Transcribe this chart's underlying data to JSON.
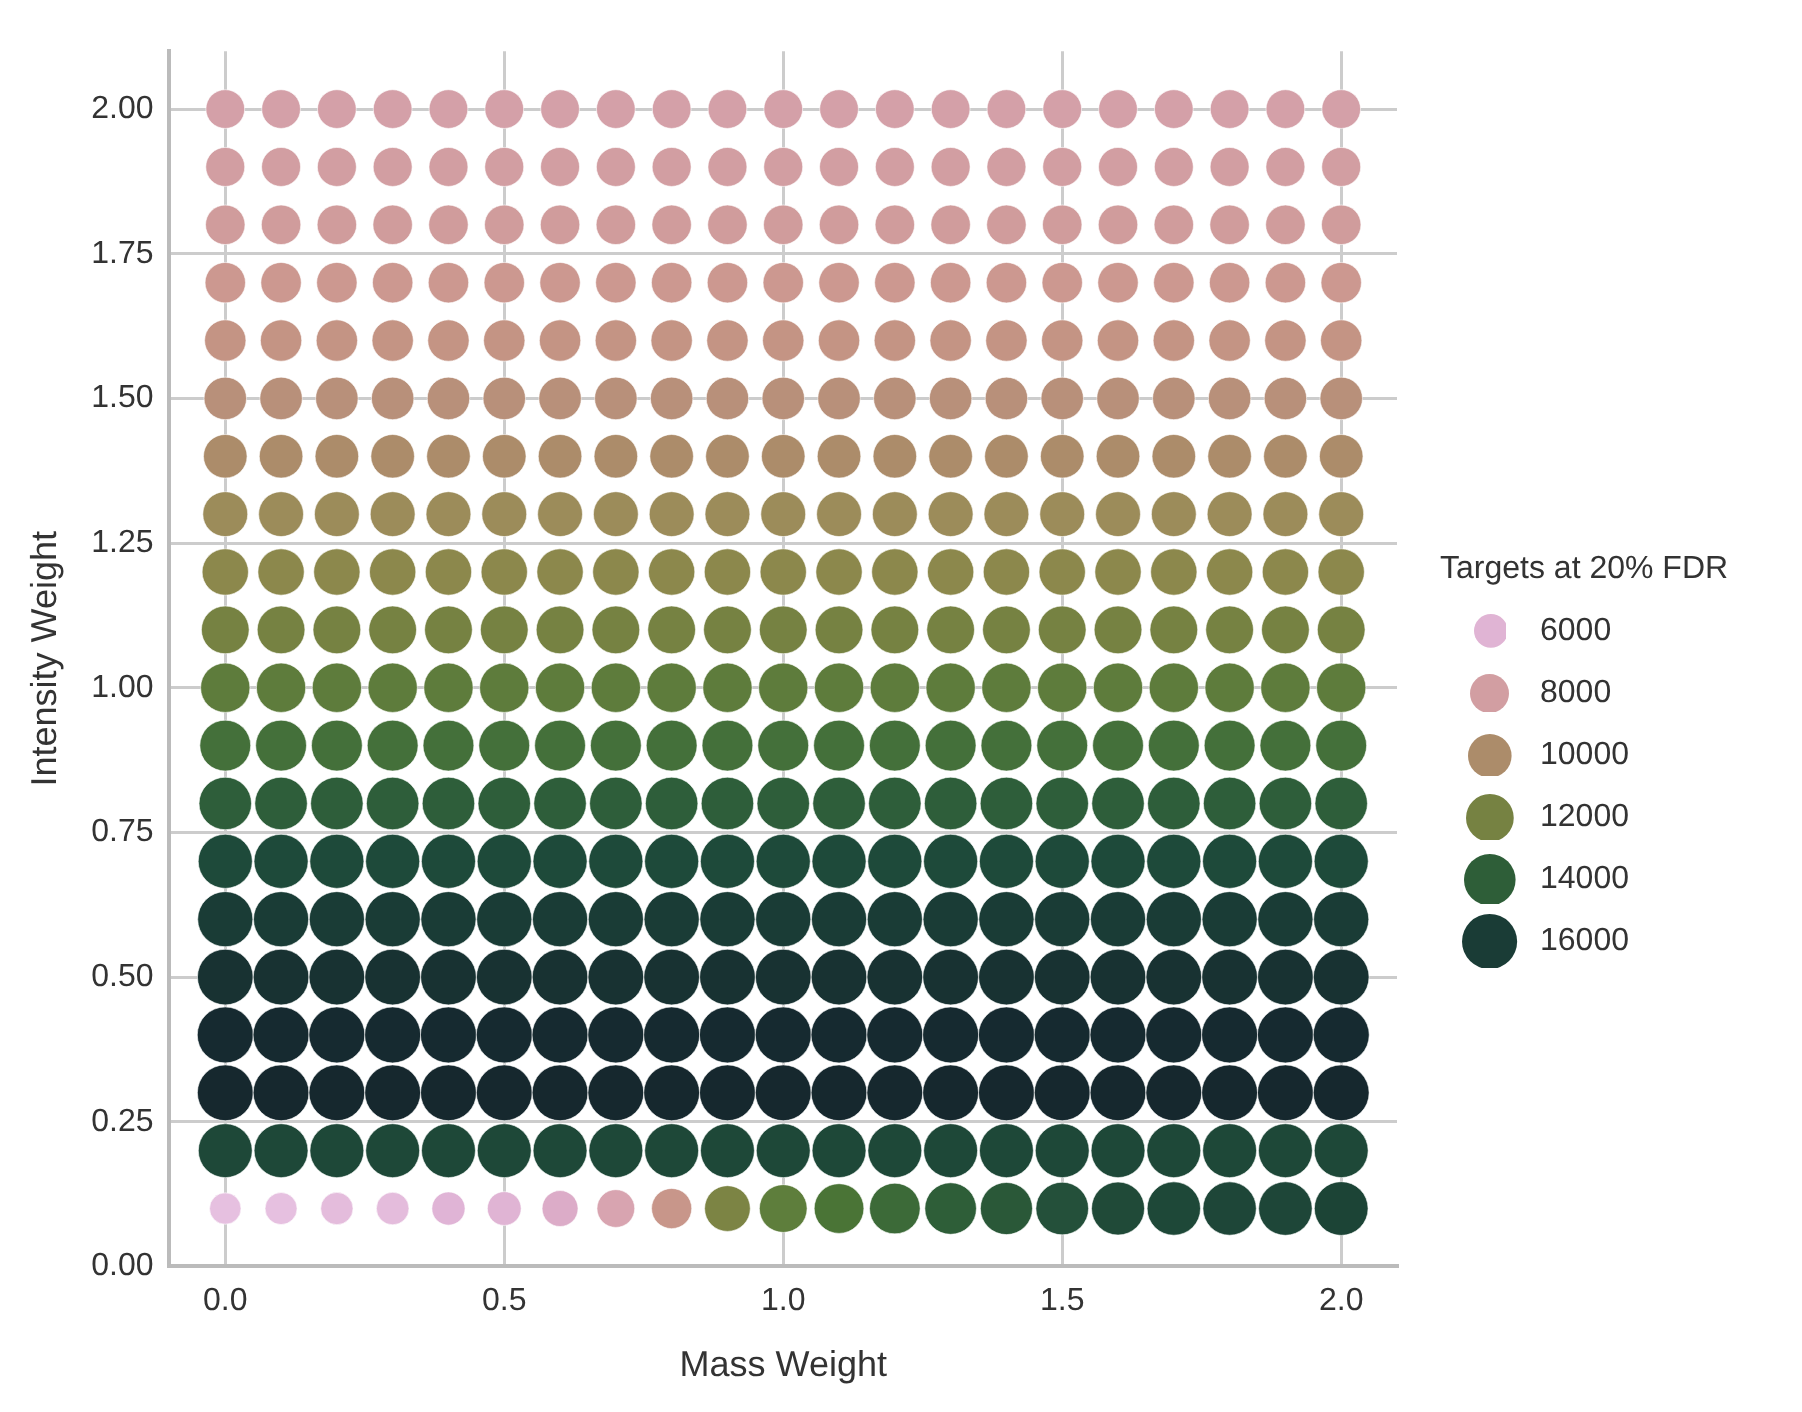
{
  "chart_data": {
    "type": "bubble",
    "xlabel": "Mass Weight",
    "ylabel": "Intensity Weight",
    "legend_title": "Targets at 20% FDR",
    "grid": true,
    "x": [
      0,
      0.1,
      0.2,
      0.3,
      0.4,
      0.5,
      0.6,
      0.7,
      0.8,
      0.9,
      1.0,
      1.1,
      1.2,
      1.3,
      1.4,
      1.5,
      1.6,
      1.7,
      1.8,
      1.9,
      2.0
    ],
    "xlim": [
      -0.1,
      2.1
    ],
    "xticks": [
      {
        "value": 0,
        "label": "0.0"
      },
      0.5,
      {
        "value": 1,
        "label": "1.0"
      },
      1.5,
      {
        "value": 2,
        "label": "2.0"
      }
    ],
    "ylim": [
      0,
      2.1
    ],
    "yticks": [
      {
        "value": 0,
        "label": "0.00"
      },
      0.25,
      {
        "value": 0.5,
        "label": "0.50"
      },
      0.75,
      {
        "value": 1,
        "label": "1.00"
      },
      1.25,
      {
        "value": 1.5,
        "label": "1.50"
      },
      1.75,
      {
        "value": 2,
        "label": "2.00"
      }
    ],
    "size_legend": [
      6000,
      8000,
      10000,
      12000,
      14000,
      16000
    ],
    "series": [
      {
        "color": "#d4a0a8",
        "values": [
          2,
          2,
          2,
          2,
          2,
          2,
          2,
          2,
          2,
          2,
          2,
          2,
          2,
          2,
          2,
          2,
          2,
          2,
          2,
          2,
          2
        ],
        "sizes": [
          7900,
          7900,
          7900,
          7900,
          7900,
          7900,
          7900,
          7900,
          7900,
          7900,
          7900,
          7900,
          7900,
          7900,
          7900,
          7900,
          7900,
          7900,
          7900,
          7900,
          7900
        ]
      },
      {
        "color": "#d29ea2",
        "values": [
          1.9,
          1.9,
          1.9,
          1.9,
          1.9,
          1.9,
          1.9,
          1.9,
          1.9,
          1.9,
          1.9,
          1.9,
          1.9,
          1.9,
          1.9,
          1.9,
          1.9,
          1.9,
          1.9,
          1.9,
          1.9
        ],
        "sizes": [
          8000,
          8000,
          8000,
          8000,
          8000,
          8000,
          8000,
          8000,
          8000,
          8000,
          8000,
          8000,
          8000,
          8000,
          8000,
          8000,
          8000,
          8000,
          8000,
          8000,
          8000
        ]
      },
      {
        "color": "#d09c9c",
        "values": [
          1.8,
          1.8,
          1.8,
          1.8,
          1.8,
          1.8,
          1.8,
          1.8,
          1.8,
          1.8,
          1.8,
          1.8,
          1.8,
          1.8,
          1.8,
          1.8,
          1.8,
          1.8,
          1.8,
          1.8,
          1.8
        ],
        "sizes": [
          8200,
          8200,
          8200,
          8200,
          8200,
          8200,
          8200,
          8200,
          8200,
          8200,
          8200,
          8200,
          8200,
          8200,
          8200,
          8200,
          8200,
          8200,
          8200,
          8200,
          8200
        ]
      },
      {
        "color": "#cc9890",
        "values": [
          1.7,
          1.7,
          1.7,
          1.7,
          1.7,
          1.7,
          1.7,
          1.7,
          1.7,
          1.7,
          1.7,
          1.7,
          1.7,
          1.7,
          1.7,
          1.7,
          1.7,
          1.7,
          1.7,
          1.7,
          1.7
        ],
        "sizes": [
          8600,
          8600,
          8600,
          8600,
          8600,
          8600,
          8600,
          8600,
          8600,
          8600,
          8600,
          8600,
          8600,
          8600,
          8600,
          8600,
          8600,
          8600,
          8600,
          8600,
          8600
        ]
      },
      {
        "color": "#c49484",
        "values": [
          1.6,
          1.6,
          1.6,
          1.6,
          1.6,
          1.6,
          1.6,
          1.6,
          1.6,
          1.6,
          1.6,
          1.6,
          1.6,
          1.6,
          1.6,
          1.6,
          1.6,
          1.6,
          1.6,
          1.6,
          1.6
        ],
        "sizes": [
          9000,
          9000,
          9000,
          9000,
          9000,
          9000,
          9000,
          9000,
          9000,
          9000,
          9000,
          9000,
          9000,
          9000,
          9000,
          9000,
          9000,
          9000,
          9000,
          9000,
          9000
        ]
      },
      {
        "color": "#b8907a",
        "values": [
          1.5,
          1.5,
          1.5,
          1.5,
          1.5,
          1.5,
          1.5,
          1.5,
          1.5,
          1.5,
          1.5,
          1.5,
          1.5,
          1.5,
          1.5,
          1.5,
          1.5,
          1.5,
          1.5,
          1.5,
          1.5
        ],
        "sizes": [
          9500,
          9500,
          9500,
          9500,
          9500,
          9500,
          9500,
          9500,
          9500,
          9500,
          9500,
          9500,
          9500,
          9500,
          9500,
          9500,
          9500,
          9500,
          9500,
          9500,
          9500
        ]
      },
      {
        "color": "#ac8c6a",
        "values": [
          1.4,
          1.4,
          1.4,
          1.4,
          1.4,
          1.4,
          1.4,
          1.4,
          1.4,
          1.4,
          1.4,
          1.4,
          1.4,
          1.4,
          1.4,
          1.4,
          1.4,
          1.4,
          1.4,
          1.4,
          1.4
        ],
        "sizes": [
          10000,
          10000,
          10000,
          10000,
          10000,
          10000,
          10000,
          10000,
          10000,
          10000,
          10000,
          10000,
          10000,
          10000,
          10000,
          10000,
          10000,
          10000,
          10000,
          10000,
          10000
        ]
      },
      {
        "color": "#9c8c5a",
        "values": [
          1.3,
          1.3,
          1.3,
          1.3,
          1.3,
          1.3,
          1.3,
          1.3,
          1.3,
          1.3,
          1.3,
          1.3,
          1.3,
          1.3,
          1.3,
          1.3,
          1.3,
          1.3,
          1.3,
          1.3,
          1.3
        ],
        "sizes": [
          10600,
          10600,
          10600,
          10600,
          10600,
          10600,
          10600,
          10600,
          10600,
          10600,
          10600,
          10600,
          10600,
          10600,
          10600,
          10600,
          10600,
          10600,
          10600,
          10600,
          10600
        ]
      },
      {
        "color": "#8c884c",
        "values": [
          1.2,
          1.2,
          1.2,
          1.2,
          1.2,
          1.2,
          1.2,
          1.2,
          1.2,
          1.2,
          1.2,
          1.2,
          1.2,
          1.2,
          1.2,
          1.2,
          1.2,
          1.2,
          1.2,
          1.2,
          1.2
        ],
        "sizes": [
          11300,
          11300,
          11300,
          11300,
          11300,
          11300,
          11300,
          11300,
          11300,
          11300,
          11300,
          11300,
          11300,
          11300,
          11300,
          11300,
          11300,
          11300,
          11300,
          11300,
          11300
        ]
      },
      {
        "color": "#768242",
        "values": [
          1.1,
          1.1,
          1.1,
          1.1,
          1.1,
          1.1,
          1.1,
          1.1,
          1.1,
          1.1,
          1.1,
          1.1,
          1.1,
          1.1,
          1.1,
          1.1,
          1.1,
          1.1,
          1.1,
          1.1,
          1.1
        ],
        "sizes": [
          12000,
          12000,
          12000,
          12000,
          12000,
          12000,
          12000,
          12000,
          12000,
          12000,
          12000,
          12000,
          12000,
          12000,
          12000,
          12000,
          12000,
          12000,
          12000,
          12000,
          12000
        ]
      },
      {
        "color": "#5e7c3c",
        "values": [
          1,
          1,
          1,
          1,
          1,
          1,
          1,
          1,
          1,
          1,
          1,
          1,
          1,
          1,
          1,
          1,
          1,
          1,
          1,
          1,
          1
        ],
        "sizes": [
          12800,
          12800,
          12800,
          12800,
          12800,
          12800,
          12800,
          12800,
          12800,
          12800,
          12800,
          12800,
          12800,
          12800,
          12800,
          12800,
          12800,
          12800,
          12800,
          12800,
          12800
        ]
      },
      {
        "color": "#44703a",
        "values": [
          0.9,
          0.9,
          0.9,
          0.9,
          0.9,
          0.9,
          0.9,
          0.9,
          0.9,
          0.9,
          0.9,
          0.9,
          0.9,
          0.9,
          0.9,
          0.9,
          0.9,
          0.9,
          0.9,
          0.9,
          0.9
        ],
        "sizes": [
          13600,
          13600,
          13600,
          13600,
          13600,
          13600,
          13600,
          13600,
          13600,
          13600,
          13600,
          13600,
          13600,
          13600,
          13600,
          13600,
          13600,
          13600,
          13600,
          13600,
          13600
        ]
      },
      {
        "color": "#2e5e3a",
        "values": [
          0.8,
          0.8,
          0.8,
          0.8,
          0.8,
          0.8,
          0.8,
          0.8,
          0.8,
          0.8,
          0.8,
          0.8,
          0.8,
          0.8,
          0.8,
          0.8,
          0.8,
          0.8,
          0.8,
          0.8,
          0.8
        ],
        "sizes": [
          14500,
          14500,
          14500,
          14500,
          14500,
          14500,
          14500,
          14500,
          14500,
          14500,
          14500,
          14500,
          14500,
          14500,
          14500,
          14500,
          14500,
          14500,
          14500,
          14500,
          14500
        ]
      },
      {
        "color": "#1e4a3a",
        "values": [
          0.7,
          0.7,
          0.7,
          0.7,
          0.7,
          0.7,
          0.7,
          0.7,
          0.7,
          0.7,
          0.7,
          0.7,
          0.7,
          0.7,
          0.7,
          0.7,
          0.7,
          0.7,
          0.7,
          0.7,
          0.7
        ],
        "sizes": [
          15400,
          15400,
          15400,
          15400,
          15400,
          15400,
          15400,
          15400,
          15400,
          15400,
          15400,
          15400,
          15400,
          15400,
          15400,
          15400,
          15400,
          15400,
          15400,
          15400,
          15400
        ]
      },
      {
        "color": "#1a3c36",
        "values": [
          0.6,
          0.6,
          0.6,
          0.6,
          0.6,
          0.6,
          0.6,
          0.6,
          0.6,
          0.6,
          0.6,
          0.6,
          0.6,
          0.6,
          0.6,
          0.6,
          0.6,
          0.6,
          0.6,
          0.6,
          0.6
        ],
        "sizes": [
          16000,
          16000,
          16000,
          16000,
          16000,
          16000,
          16000,
          16000,
          16000,
          16000,
          16000,
          16000,
          16000,
          16000,
          16000,
          16000,
          16000,
          16000,
          16000,
          16000,
          16000
        ]
      },
      {
        "color": "#183232",
        "values": [
          0.5,
          0.5,
          0.5,
          0.5,
          0.5,
          0.5,
          0.5,
          0.5,
          0.5,
          0.5,
          0.5,
          0.5,
          0.5,
          0.5,
          0.5,
          0.5,
          0.5,
          0.5,
          0.5,
          0.5,
          0.5
        ],
        "sizes": [
          16300,
          16300,
          16300,
          16300,
          16300,
          16300,
          16300,
          16300,
          16300,
          16300,
          16300,
          16300,
          16300,
          16300,
          16300,
          16300,
          16300,
          16300,
          16300,
          16300,
          16300
        ]
      },
      {
        "color": "#162a30",
        "values": [
          0.4,
          0.4,
          0.4,
          0.4,
          0.4,
          0.4,
          0.4,
          0.4,
          0.4,
          0.4,
          0.4,
          0.4,
          0.4,
          0.4,
          0.4,
          0.4,
          0.4,
          0.4,
          0.4,
          0.4,
          0.4
        ],
        "sizes": [
          16500,
          16500,
          16500,
          16500,
          16500,
          16500,
          16500,
          16500,
          16500,
          16500,
          16500,
          16500,
          16500,
          16500,
          16500,
          16500,
          16500,
          16500,
          16500,
          16500,
          16500
        ]
      },
      {
        "color": "#16282e",
        "values": [
          0.3,
          0.3,
          0.3,
          0.3,
          0.3,
          0.3,
          0.3,
          0.3,
          0.3,
          0.3,
          0.3,
          0.3,
          0.3,
          0.3,
          0.3,
          0.3,
          0.3,
          0.3,
          0.3,
          0.3,
          0.3
        ],
        "sizes": [
          16400,
          16400,
          16400,
          16400,
          16400,
          16400,
          16400,
          16400,
          16400,
          16400,
          16400,
          16400,
          16400,
          16400,
          16400,
          16400,
          16400,
          16400,
          16400,
          16400,
          16400
        ]
      },
      {
        "color": "#1e4838",
        "values": [
          0.2,
          0.2,
          0.2,
          0.2,
          0.2,
          0.2,
          0.2,
          0.2,
          0.2,
          0.2,
          0.2,
          0.2,
          0.2,
          0.2,
          0.2,
          0.2,
          0.2,
          0.2,
          0.2,
          0.2,
          0.2
        ],
        "sizes": [
          15300,
          15300,
          15300,
          15300,
          15300,
          15300,
          15300,
          15300,
          15300,
          15300,
          15300,
          15300,
          15300,
          15300,
          15300,
          15300,
          15300,
          15300,
          15300,
          15300,
          15300
        ]
      },
      {
        "colors": [
          "#e6c0e0",
          "#e6c0e0",
          "#e4bcdc",
          "#e4bcdc",
          "#e0b4d6",
          "#e0b4d4",
          "#dcacc8",
          "#d8a4b0",
          "#c8968a",
          "#7c8444",
          "#5e7e3c",
          "#4a7436",
          "#3c6a38",
          "#2e5e38",
          "#2a5838",
          "#24503a",
          "#204a38",
          "#1e4838",
          "#1e4638",
          "#1e4638",
          "#1c4436"
        ],
        "values": [
          0.1,
          0.1,
          0.1,
          0.1,
          0.1,
          0.1,
          0.1,
          0.1,
          0.1,
          0.1,
          0.1,
          0.1,
          0.1,
          0.1,
          0.1,
          0.1,
          0.1,
          0.1,
          0.1,
          0.1,
          0.1
        ],
        "sizes": [
          5200,
          5400,
          5500,
          5600,
          5800,
          6000,
          6800,
          7500,
          8500,
          11000,
          12000,
          13000,
          13500,
          14000,
          14300,
          14600,
          14800,
          15000,
          15000,
          15100,
          15200
        ]
      }
    ]
  }
}
